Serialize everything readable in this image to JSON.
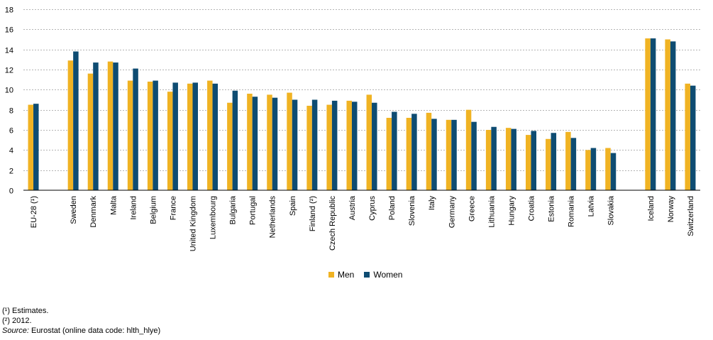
{
  "chart_data": {
    "type": "bar",
    "categories": [
      "EU-28 (¹)",
      "",
      "Sweden",
      "Denmark",
      "Malta",
      "Ireland",
      "Belgium",
      "France",
      "United Kingdom",
      "Luxembourg",
      "Bulgaria",
      "Portugal",
      "Netherlands",
      "Spain",
      "Finland (²)",
      "Czech Republic",
      "Austria",
      "Cyprus",
      "Poland",
      "Slovenia",
      "Italy",
      "Germany",
      "Greece",
      "Lithuania",
      "Hungary",
      "Croatia",
      "Estonia",
      "Romania",
      "Latvia",
      "Slovakia",
      "",
      "Iceland",
      "Norway",
      "Switzerland"
    ],
    "series": [
      {
        "name": "Men",
        "color": "#f0b323",
        "values": [
          8.5,
          null,
          12.9,
          11.6,
          12.8,
          10.9,
          10.8,
          9.8,
          10.6,
          10.9,
          8.7,
          9.6,
          9.5,
          9.7,
          8.4,
          8.5,
          8.9,
          9.5,
          7.2,
          7.2,
          7.7,
          7.0,
          8.0,
          6.0,
          6.2,
          5.5,
          5.1,
          5.8,
          4.0,
          4.2,
          null,
          15.1,
          15.0,
          10.6
        ]
      },
      {
        "name": "Women",
        "color": "#0e4c72",
        "values": [
          8.6,
          null,
          13.8,
          12.7,
          12.7,
          12.1,
          10.9,
          10.7,
          10.7,
          10.6,
          9.9,
          9.3,
          9.2,
          9.0,
          9.0,
          8.9,
          8.8,
          8.7,
          7.8,
          7.6,
          7.1,
          7.0,
          6.8,
          6.3,
          6.1,
          5.9,
          5.7,
          5.2,
          4.2,
          3.7,
          null,
          15.1,
          14.8,
          10.4
        ]
      }
    ],
    "title": "",
    "xlabel": "",
    "ylabel": "",
    "ylim": [
      0,
      18
    ],
    "yticks": [
      0,
      2,
      4,
      6,
      8,
      10,
      12,
      14,
      16,
      18
    ],
    "grid": true,
    "legend_position": "bottom"
  },
  "legend": {
    "men": "Men",
    "women": "Women"
  },
  "notes": {
    "note1": "(¹) Estimates.",
    "note2": "(²) 2012.",
    "source_label": "Source:",
    "source_text": " Eurostat (online data code: hlth_hlye)"
  }
}
